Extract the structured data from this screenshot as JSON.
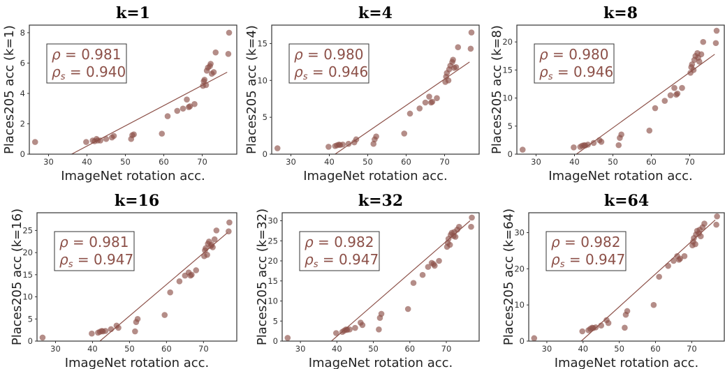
{
  "chart_data": [
    {
      "type": "scatter",
      "title": "k=1",
      "xlabel": "ImageNet rotation acc.",
      "ylabel": "Places205 acc (k=1)",
      "xlim": [
        25,
        79
      ],
      "ylim": [
        0,
        8.5
      ],
      "xticks": [
        "30",
        "40",
        "50",
        "60",
        "70"
      ],
      "yticks": [
        "0",
        "2",
        "4",
        "6",
        "8"
      ],
      "annotation": {
        "rho": "0.981",
        "rho_s": "0.940"
      },
      "fit_line": {
        "x": [
          36,
          76.5
        ],
        "y": [
          0,
          5.4
        ]
      },
      "points": {
        "x": [
          26.5,
          39.8,
          41.5,
          42,
          42.5,
          42.8,
          43.5,
          45,
          46.5,
          47,
          51.5,
          51.8,
          52.2,
          59.5,
          61,
          63.5,
          65,
          66,
          66.5,
          66.8,
          68,
          70.2,
          70.4,
          70.6,
          71,
          71.2,
          71.5,
          72,
          72.2,
          72.5,
          73,
          73.5,
          76.8,
          77
        ],
        "y": [
          0.8,
          0.8,
          0.9,
          0.85,
          1.0,
          0.9,
          0.9,
          1.0,
          1.1,
          1.2,
          1.0,
          1.25,
          1.3,
          1.35,
          2.5,
          2.85,
          3.0,
          3.6,
          3.1,
          3.15,
          3.3,
          4.5,
          4.8,
          4.9,
          4.55,
          5.5,
          5.7,
          5.8,
          5.95,
          5.3,
          5.4,
          6.7,
          6.6,
          8.0
        ]
      }
    },
    {
      "type": "scatter",
      "title": "k=4",
      "xlabel": "ImageNet rotation acc.",
      "ylabel": "Places205 acc (k=4)",
      "xlim": [
        25,
        79
      ],
      "ylim": [
        0,
        17.5
      ],
      "xticks": [
        "30",
        "40",
        "50",
        "60",
        "70"
      ],
      "yticks": [
        "0",
        "5",
        "10",
        "15"
      ],
      "annotation": {
        "rho": "0.980",
        "rho_s": "0.946"
      },
      "fit_line": {
        "x": [
          41.5,
          76.5
        ],
        "y": [
          0,
          12.5
        ]
      },
      "points": {
        "x": [
          26.5,
          39.8,
          41.5,
          42,
          42.5,
          42.8,
          43.5,
          45,
          46.5,
          47,
          51.5,
          51.8,
          52.2,
          59.5,
          61,
          63.5,
          65,
          66,
          66.5,
          66.8,
          68,
          70.2,
          70.4,
          70.6,
          71,
          71.2,
          71.5,
          72,
          72.2,
          72.5,
          73,
          73.5,
          76.8,
          77
        ],
        "y": [
          0.8,
          1.0,
          1.1,
          1.2,
          1.3,
          1.25,
          1.3,
          1.4,
          1.6,
          2.0,
          1.4,
          2.0,
          2.4,
          2.8,
          5.5,
          6.2,
          7.0,
          7.8,
          7.0,
          7.1,
          7.6,
          9.8,
          10.5,
          11.0,
          10.0,
          11.5,
          12.0,
          12.5,
          12.8,
          11.7,
          11.8,
          14.5,
          14.3,
          16.5
        ]
      }
    },
    {
      "type": "scatter",
      "title": "k=8",
      "xlabel": "ImageNet rotation acc.",
      "ylabel": "Places205 acc (k=8)",
      "xlim": [
        25,
        79
      ],
      "ylim": [
        0,
        23
      ],
      "xticks": [
        "30",
        "40",
        "50",
        "60",
        "70"
      ],
      "yticks": [
        "0",
        "5",
        "10",
        "15",
        "20"
      ],
      "annotation": {
        "rho": "0.980",
        "rho_s": "0.946"
      },
      "fit_line": {
        "x": [
          40.5,
          76.5
        ],
        "y": [
          0,
          17.8
        ]
      },
      "points": {
        "x": [
          26.5,
          39.8,
          41.5,
          42,
          42.5,
          42.8,
          43.5,
          45,
          46.5,
          47,
          51.5,
          51.8,
          52.2,
          59.5,
          61,
          63.5,
          65,
          66,
          66.5,
          66.8,
          68,
          70.2,
          70.4,
          70.6,
          71,
          71.2,
          71.5,
          72,
          72.2,
          72.5,
          73,
          73.5,
          76.8,
          77
        ],
        "y": [
          0.8,
          1.2,
          1.3,
          1.5,
          1.6,
          1.55,
          1.7,
          2.0,
          2.5,
          2.2,
          1.6,
          2.9,
          3.5,
          4.2,
          8.2,
          9.5,
          10.5,
          11.8,
          10.6,
          10.8,
          11.8,
          14.5,
          15.5,
          16.0,
          15.0,
          16.8,
          17.5,
          18.0,
          17.2,
          16.5,
          17.8,
          20.0,
          19.8,
          22.0
        ]
      }
    },
    {
      "type": "scatter",
      "title": "k=16",
      "xlabel": "ImageNet rotation acc.",
      "ylabel": "Places205 acc (k=16)",
      "xlim": [
        25,
        79
      ],
      "ylim": [
        0,
        29
      ],
      "xticks": [
        "30",
        "40",
        "50",
        "60",
        "70"
      ],
      "yticks": [
        "0",
        "5",
        "10",
        "15",
        "20",
        "25"
      ],
      "annotation": {
        "rho": "0.981",
        "rho_s": "0.947"
      },
      "fit_line": {
        "x": [
          42,
          76.5
        ],
        "y": [
          0,
          24.5
        ]
      },
      "points": {
        "x": [
          26.5,
          39.8,
          41.5,
          42,
          42.5,
          42.8,
          43.5,
          45,
          46.5,
          47,
          51.5,
          51.8,
          52.2,
          59.5,
          61,
          63.5,
          65,
          66,
          66.5,
          66.8,
          68,
          70.2,
          70.4,
          70.6,
          71,
          71.2,
          71.5,
          72,
          72.2,
          72.5,
          73,
          73.5,
          76.8,
          77
        ],
        "y": [
          0.8,
          1.7,
          1.9,
          2.1,
          2.3,
          2.2,
          2.3,
          2.7,
          3.5,
          3.0,
          2.2,
          4.3,
          5.0,
          5.9,
          11.0,
          13.5,
          14.8,
          15.5,
          14.8,
          15.0,
          16.0,
          19.2,
          20.5,
          21.0,
          19.5,
          22.0,
          22.5,
          21.5,
          21.8,
          21.2,
          23.0,
          25.0,
          24.8,
          26.8
        ]
      }
    },
    {
      "type": "scatter",
      "title": "k=32",
      "xlabel": "ImageNet rotation acc.",
      "ylabel": "Places205 acc (k=32)",
      "xlim": [
        25,
        79
      ],
      "ylim": [
        0,
        32
      ],
      "xticks": [
        "30",
        "40",
        "50",
        "60",
        "70"
      ],
      "yticks": [
        "0",
        "5",
        "10",
        "15",
        "20",
        "25",
        "30"
      ],
      "annotation": {
        "rho": "0.982",
        "rho_s": "0.947"
      },
      "fit_line": {
        "x": [
          38.5,
          76.5
        ],
        "y": [
          0,
          30.0
        ]
      },
      "points": {
        "x": [
          26.5,
          39.8,
          41.5,
          42,
          42.5,
          42.8,
          43.5,
          45,
          46.5,
          47,
          51.5,
          51.8,
          52.2,
          59.5,
          61,
          63.5,
          65,
          66,
          66.5,
          66.8,
          68,
          70.2,
          70.4,
          70.6,
          71,
          71.2,
          71.5,
          72,
          72.2,
          72.5,
          73,
          73.5,
          76.8,
          77
        ],
        "y": [
          0.8,
          2.0,
          2.3,
          2.6,
          2.9,
          2.8,
          2.9,
          3.3,
          4.6,
          4.0,
          2.9,
          5.8,
          6.8,
          8.0,
          14.5,
          16.5,
          18.5,
          19.5,
          19.2,
          18.8,
          20.0,
          23.5,
          24.5,
          25.5,
          24.0,
          26.5,
          27.0,
          26.2,
          27.2,
          26.0,
          27.8,
          28.5,
          28.5,
          30.8
        ]
      }
    },
    {
      "type": "scatter",
      "title": "k=64",
      "xlabel": "ImageNet rotation acc.",
      "ylabel": "Places205 acc (k=64)",
      "xlim": [
        25,
        79
      ],
      "ylim": [
        0,
        35.5
      ],
      "xticks": [
        "30",
        "40",
        "50",
        "60",
        "70"
      ],
      "yticks": [
        "0",
        "10",
        "20",
        "30"
      ],
      "annotation": {
        "rho": "0.982",
        "rho_s": "0.947"
      },
      "fit_line": {
        "x": [
          39.5,
          76.5
        ],
        "y": [
          0,
          33.5
        ]
      },
      "points": {
        "x": [
          26.5,
          39.8,
          41.5,
          42,
          42.5,
          42.8,
          43.5,
          45,
          46.5,
          47,
          51.5,
          51.8,
          52.2,
          59.5,
          61,
          63.5,
          65,
          66,
          66.5,
          66.8,
          68,
          70.2,
          70.4,
          70.6,
          71,
          71.2,
          71.5,
          72,
          72.2,
          72.5,
          73,
          73.5,
          76.8,
          77
        ],
        "y": [
          0.8,
          2.7,
          3.0,
          3.4,
          3.7,
          3.6,
          3.8,
          4.3,
          5.8,
          5.0,
          3.7,
          7.3,
          8.3,
          10.0,
          17.8,
          20.8,
          22.2,
          23.5,
          22.5,
          22.8,
          23.5,
          26.5,
          27.5,
          28.5,
          26.8,
          29.5,
          30.5,
          29.8,
          30.8,
          29.0,
          31.5,
          32.5,
          32.2,
          34.5
        ]
      }
    }
  ]
}
